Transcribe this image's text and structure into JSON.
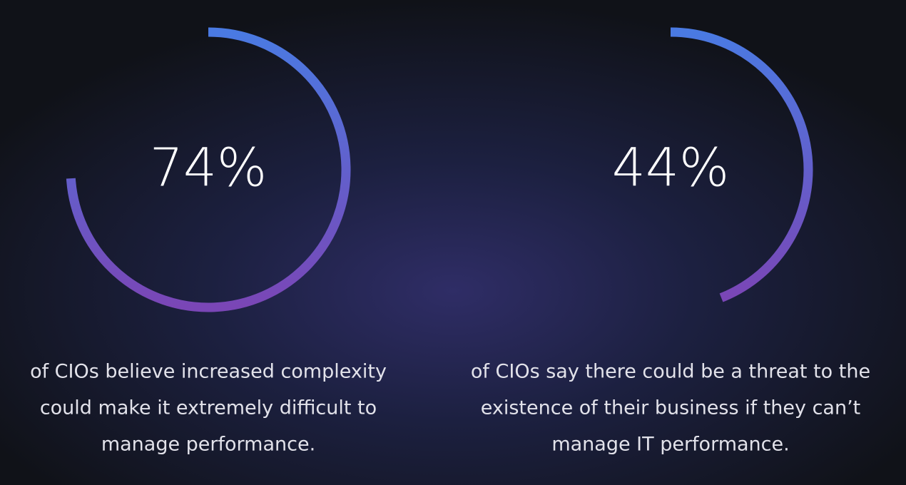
{
  "chart_data": [
    {
      "type": "ring-gauge",
      "values": [
        74
      ],
      "value_labels": [
        "74%"
      ],
      "vlim": [
        0,
        100
      ],
      "color_start": "#4a7ae2",
      "color_end": "#7a46b6",
      "caption": [
        "of CIOs believe increased complexity",
        "could make it extremely difficult to",
        "manage performance."
      ]
    },
    {
      "type": "ring-gauge",
      "values": [
        44
      ],
      "value_labels": [
        "44%"
      ],
      "vlim": [
        0,
        100
      ],
      "color_start": "#4a7ae2",
      "color_end": "#7a46b6",
      "caption": [
        "of CIOs say there could be a threat to the",
        "existence of their business if they can’t",
        "manage IT performance."
      ]
    }
  ]
}
